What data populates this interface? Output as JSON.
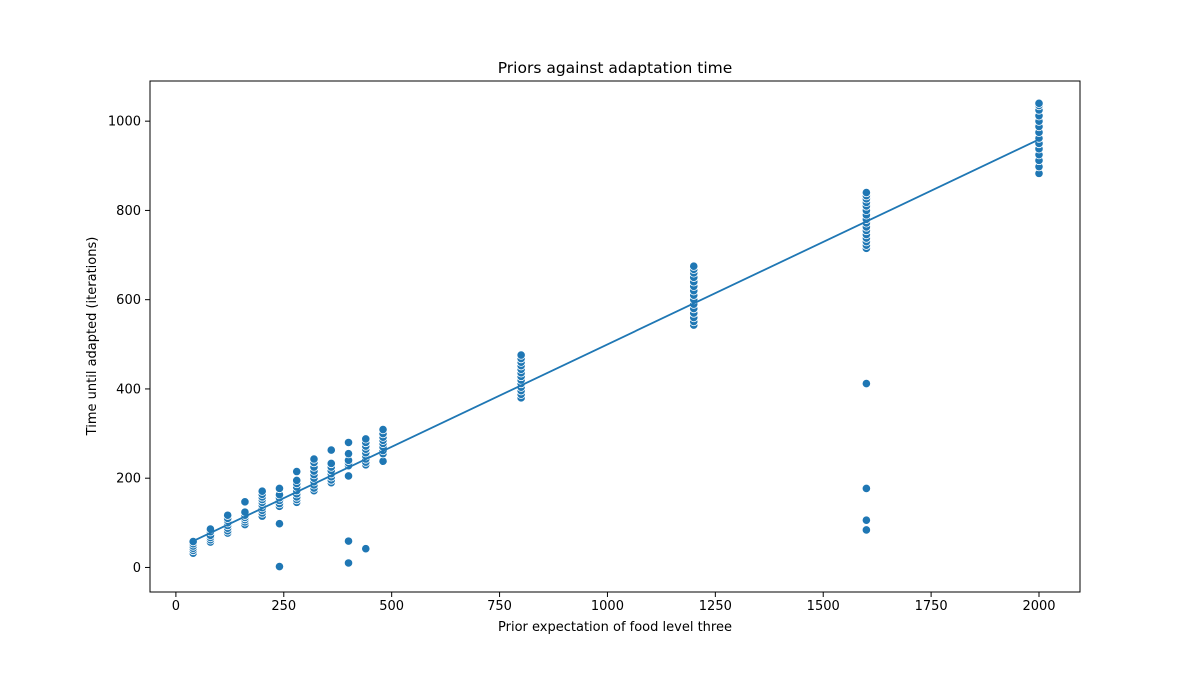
{
  "chart_data": {
    "type": "scatter",
    "title": "Priors against adaptation time",
    "xlabel": "Prior expectation of food level three",
    "ylabel": "Time until adapted (iterations)",
    "xlim": [
      -60,
      2095
    ],
    "ylim": [
      -55,
      1090
    ],
    "xticks": [
      0,
      250,
      500,
      750,
      1000,
      1250,
      1500,
      1750,
      2000
    ],
    "yticks": [
      0,
      200,
      400,
      600,
      800,
      1000
    ],
    "grid": false,
    "legend": "none",
    "colors": {
      "points": "#1f77b4",
      "line": "#1f77b4"
    },
    "series": [
      {
        "kind": "scatter",
        "points": [
          [
            40,
            32
          ],
          [
            40,
            38
          ],
          [
            40,
            43
          ],
          [
            40,
            48
          ],
          [
            40,
            53
          ],
          [
            40,
            58
          ],
          [
            80,
            57
          ],
          [
            80,
            62
          ],
          [
            80,
            67
          ],
          [
            80,
            72
          ],
          [
            80,
            80
          ],
          [
            80,
            86
          ],
          [
            120,
            77
          ],
          [
            120,
            82
          ],
          [
            120,
            88
          ],
          [
            120,
            94
          ],
          [
            120,
            100
          ],
          [
            120,
            105
          ],
          [
            120,
            110
          ],
          [
            120,
            117
          ],
          [
            160,
            96
          ],
          [
            160,
            102
          ],
          [
            160,
            107
          ],
          [
            160,
            112
          ],
          [
            160,
            117
          ],
          [
            160,
            124
          ],
          [
            160,
            147
          ],
          [
            200,
            115
          ],
          [
            200,
            122
          ],
          [
            200,
            128
          ],
          [
            200,
            134
          ],
          [
            200,
            140
          ],
          [
            200,
            146
          ],
          [
            200,
            152
          ],
          [
            200,
            158
          ],
          [
            200,
            164
          ],
          [
            200,
            171
          ],
          [
            240,
            2
          ],
          [
            240,
            98
          ],
          [
            240,
            137
          ],
          [
            240,
            143
          ],
          [
            240,
            150
          ],
          [
            240,
            156
          ],
          [
            240,
            163
          ],
          [
            240,
            177
          ],
          [
            280,
            146
          ],
          [
            280,
            152
          ],
          [
            280,
            158
          ],
          [
            280,
            165
          ],
          [
            280,
            172
          ],
          [
            280,
            180
          ],
          [
            280,
            188
          ],
          [
            280,
            195
          ],
          [
            280,
            215
          ],
          [
            320,
            172
          ],
          [
            320,
            178
          ],
          [
            320,
            185
          ],
          [
            320,
            192
          ],
          [
            320,
            200
          ],
          [
            320,
            208
          ],
          [
            320,
            216
          ],
          [
            320,
            225
          ],
          [
            320,
            235
          ],
          [
            320,
            243
          ],
          [
            360,
            190
          ],
          [
            360,
            196
          ],
          [
            360,
            203
          ],
          [
            360,
            210
          ],
          [
            360,
            217
          ],
          [
            360,
            225
          ],
          [
            360,
            233
          ],
          [
            360,
            263
          ],
          [
            400,
            10
          ],
          [
            400,
            59
          ],
          [
            400,
            205
          ],
          [
            400,
            228
          ],
          [
            400,
            234
          ],
          [
            400,
            240
          ],
          [
            400,
            255
          ],
          [
            400,
            280
          ],
          [
            440,
            42
          ],
          [
            440,
            230
          ],
          [
            440,
            236
          ],
          [
            440,
            243
          ],
          [
            440,
            250
          ],
          [
            440,
            257
          ],
          [
            440,
            265
          ],
          [
            440,
            272
          ],
          [
            440,
            280
          ],
          [
            440,
            288
          ],
          [
            480,
            238
          ],
          [
            480,
            255
          ],
          [
            480,
            262
          ],
          [
            480,
            270
          ],
          [
            480,
            278
          ],
          [
            480,
            285
          ],
          [
            480,
            292
          ],
          [
            480,
            300
          ],
          [
            480,
            309
          ],
          [
            800,
            380
          ],
          [
            800,
            388
          ],
          [
            800,
            396
          ],
          [
            800,
            404
          ],
          [
            800,
            412
          ],
          [
            800,
            420
          ],
          [
            800,
            428
          ],
          [
            800,
            436
          ],
          [
            800,
            444
          ],
          [
            800,
            452
          ],
          [
            800,
            460
          ],
          [
            800,
            468
          ],
          [
            800,
            476
          ],
          [
            1200,
            543
          ],
          [
            1200,
            551
          ],
          [
            1200,
            560
          ],
          [
            1200,
            570
          ],
          [
            1200,
            580
          ],
          [
            1200,
            590
          ],
          [
            1200,
            600
          ],
          [
            1200,
            610
          ],
          [
            1200,
            620
          ],
          [
            1200,
            630
          ],
          [
            1200,
            640
          ],
          [
            1200,
            650
          ],
          [
            1200,
            660
          ],
          [
            1200,
            668
          ],
          [
            1200,
            675
          ],
          [
            1600,
            84
          ],
          [
            1600,
            106
          ],
          [
            1600,
            177
          ],
          [
            1600,
            412
          ],
          [
            1600,
            715
          ],
          [
            1600,
            722
          ],
          [
            1600,
            730
          ],
          [
            1600,
            738
          ],
          [
            1600,
            746
          ],
          [
            1600,
            755
          ],
          [
            1600,
            763
          ],
          [
            1600,
            772
          ],
          [
            1600,
            780
          ],
          [
            1600,
            790
          ],
          [
            1600,
            800
          ],
          [
            1600,
            810
          ],
          [
            1600,
            818
          ],
          [
            1600,
            826
          ],
          [
            1600,
            833
          ],
          [
            1600,
            840
          ],
          [
            2000,
            883
          ],
          [
            2000,
            898
          ],
          [
            2000,
            912
          ],
          [
            2000,
            925
          ],
          [
            2000,
            938
          ],
          [
            2000,
            950
          ],
          [
            2000,
            962
          ],
          [
            2000,
            975
          ],
          [
            2000,
            988
          ],
          [
            2000,
            1000
          ],
          [
            2000,
            1012
          ],
          [
            2000,
            1025
          ],
          [
            2000,
            1035
          ],
          [
            2000,
            1040
          ]
        ]
      },
      {
        "kind": "line",
        "points": [
          [
            40,
            59
          ],
          [
            2000,
            959
          ]
        ]
      }
    ]
  }
}
